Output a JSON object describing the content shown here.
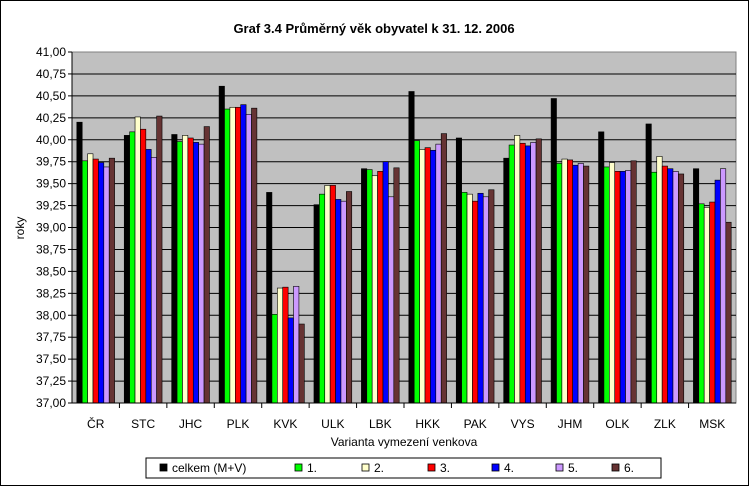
{
  "chart_data": {
    "type": "bar",
    "title": "Graf 3.4 Průměrný věk obyvatel k 31. 12. 2006",
    "xlabel": "Varianta vymezení venkova",
    "ylabel": "roky",
    "ylim": [
      37.0,
      41.0
    ],
    "ytick_step": 0.25,
    "yticks": [
      "41,00",
      "40,75",
      "40,50",
      "40,25",
      "40,00",
      "39,75",
      "39,50",
      "39,25",
      "39,00",
      "38,75",
      "38,50",
      "38,25",
      "38,00",
      "37,75",
      "37,50",
      "37,25",
      "37,00"
    ],
    "grid": true,
    "legend_position": "bottom",
    "categories": [
      "ČR",
      "STC",
      "JHC",
      "PLK",
      "KVK",
      "ULK",
      "LBK",
      "HKK",
      "PAK",
      "VYS",
      "JHM",
      "OLK",
      "ZLK",
      "MSK"
    ],
    "series": [
      {
        "name": "celkem (M+V)",
        "color": "#000000",
        "values": [
          40.2,
          40.05,
          40.06,
          40.61,
          39.4,
          39.26,
          39.67,
          40.55,
          40.02,
          39.79,
          40.47,
          40.09,
          40.18,
          39.67
        ]
      },
      {
        "name": "1.",
        "color": "#00ff00",
        "values": [
          39.76,
          40.09,
          39.98,
          40.35,
          38.01,
          39.38,
          39.66,
          39.99,
          39.4,
          39.94,
          39.73,
          39.69,
          39.63,
          39.27
        ]
      },
      {
        "name": "2.",
        "color": "#ffffcc",
        "values": [
          39.84,
          40.26,
          40.05,
          40.37,
          38.31,
          39.48,
          39.59,
          39.89,
          39.38,
          40.05,
          39.78,
          39.74,
          39.81,
          39.23
        ]
      },
      {
        "name": "3.",
        "color": "#ff0000",
        "values": [
          39.78,
          40.12,
          40.02,
          40.37,
          38.32,
          39.48,
          39.64,
          39.91,
          39.3,
          39.96,
          39.77,
          39.64,
          39.7,
          39.29
        ]
      },
      {
        "name": "4.",
        "color": "#0000ff",
        "values": [
          39.74,
          39.89,
          39.97,
          40.4,
          37.97,
          39.32,
          39.75,
          39.88,
          39.39,
          39.93,
          39.71,
          39.64,
          39.67,
          39.54
        ]
      },
      {
        "name": "5.",
        "color": "#cc99ff",
        "values": [
          39.69,
          39.8,
          39.95,
          40.29,
          38.33,
          39.3,
          39.35,
          39.95,
          39.35,
          39.97,
          39.73,
          39.65,
          39.64,
          39.67
        ]
      },
      {
        "name": "6.",
        "color": "#663333",
        "values": [
          39.79,
          40.27,
          40.15,
          40.36,
          37.9,
          39.41,
          39.68,
          40.07,
          39.43,
          40.01,
          39.7,
          39.76,
          39.61,
          39.06
        ]
      }
    ]
  }
}
